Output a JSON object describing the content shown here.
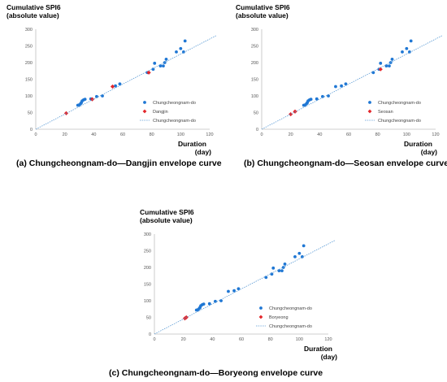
{
  "chart_data": [
    {
      "type": "scatter",
      "panel": "a",
      "caption": "(a) Chungcheongnam-do—Dangjin envelope curve",
      "ylabel_lines": [
        "Cumulative SPI6",
        "(absolute value)"
      ],
      "xlabel_lines": [
        "Duration",
        "(day)"
      ],
      "xlim": [
        0,
        120
      ],
      "ylim": [
        0,
        300
      ],
      "xticks": [
        0,
        20,
        40,
        60,
        80,
        100,
        120
      ],
      "yticks": [
        0,
        50,
        100,
        150,
        200,
        250,
        300
      ],
      "legend_position": "lower-right",
      "series": [
        {
          "name": "Chungcheongnam-do",
          "marker": "circle",
          "color": "#1f77d4",
          "x": [
            29,
            30,
            31,
            31.5,
            32,
            33,
            34,
            38,
            42,
            46,
            55,
            58,
            77,
            81,
            82,
            86,
            88,
            89,
            90,
            97,
            100,
            102,
            103
          ],
          "y": [
            72,
            73,
            77,
            80,
            85,
            88,
            90,
            91,
            98,
            100,
            130,
            136,
            170,
            180,
            198,
            190,
            190,
            200,
            210,
            232,
            242,
            232,
            265
          ]
        },
        {
          "name": "Dangjin",
          "marker": "diamond",
          "color": "#e3262b",
          "x": [
            21,
            39,
            53,
            78
          ],
          "y": [
            48,
            90,
            128,
            170
          ]
        },
        {
          "name": "Chungcheongnam-do",
          "type": "line",
          "style": "dotted",
          "color": "#5b9bd5",
          "x": [
            0,
            125
          ],
          "y": [
            0,
            282
          ]
        }
      ]
    },
    {
      "type": "scatter",
      "panel": "b",
      "caption": "(b) Chungcheongnam-do—Seosan envelope curve",
      "ylabel_lines": [
        "Cumulative SPI6",
        "(absolute value)"
      ],
      "xlabel_lines": [
        "Duration",
        "(day)"
      ],
      "xlim": [
        0,
        120
      ],
      "ylim": [
        0,
        300
      ],
      "xticks": [
        0,
        20,
        40,
        60,
        80,
        100,
        120
      ],
      "yticks": [
        0,
        50,
        100,
        150,
        200,
        250,
        300
      ],
      "legend_position": "lower-right",
      "series": [
        {
          "name": "Chungcheongnam-do",
          "marker": "circle",
          "color": "#1f77d4",
          "x": [
            29,
            30,
            31,
            31.5,
            32,
            33,
            34,
            38,
            42,
            46,
            51,
            55,
            58,
            77,
            81,
            82,
            86,
            88,
            89,
            90,
            97,
            100,
            102,
            103
          ],
          "y": [
            72,
            73,
            77,
            80,
            85,
            88,
            90,
            91,
            98,
            100,
            128,
            130,
            136,
            170,
            180,
            198,
            190,
            190,
            200,
            210,
            232,
            242,
            232,
            265
          ]
        },
        {
          "name": "Seosan",
          "marker": "diamond",
          "color": "#e3262b",
          "x": [
            20,
            23,
            82
          ],
          "y": [
            45,
            53,
            180
          ]
        },
        {
          "name": "Chungcheongnam-do",
          "type": "line",
          "style": "dotted",
          "color": "#5b9bd5",
          "x": [
            0,
            125
          ],
          "y": [
            0,
            282
          ]
        }
      ]
    },
    {
      "type": "scatter",
      "panel": "c",
      "caption": "(c) Chungcheongnam-do—Boryeong envelope curve",
      "ylabel_lines": [
        "Cumulative SPI6",
        "(absolute value)"
      ],
      "xlabel_lines": [
        "Duration",
        "(day)"
      ],
      "xlim": [
        0,
        120
      ],
      "ylim": [
        0,
        300
      ],
      "xticks": [
        0,
        20,
        40,
        60,
        80,
        100,
        120
      ],
      "yticks": [
        0,
        50,
        100,
        150,
        200,
        250,
        300
      ],
      "legend_position": "lower-right",
      "series": [
        {
          "name": "Chungcheongnam-do",
          "marker": "circle",
          "color": "#1f77d4",
          "x": [
            29,
            30,
            31,
            31.5,
            32,
            33,
            34,
            38,
            42,
            46,
            51,
            55,
            58,
            77,
            81,
            82,
            86,
            88,
            89,
            90,
            97,
            100,
            102,
            103
          ],
          "y": [
            72,
            73,
            77,
            80,
            85,
            88,
            90,
            91,
            98,
            100,
            128,
            130,
            136,
            170,
            180,
            198,
            190,
            190,
            200,
            210,
            232,
            242,
            232,
            265
          ]
        },
        {
          "name": "Boryeong",
          "marker": "diamond",
          "color": "#e3262b",
          "x": [
            21,
            22
          ],
          "y": [
            47,
            50
          ]
        },
        {
          "name": "Chungcheongnam-do",
          "type": "line",
          "style": "dotted",
          "color": "#5b9bd5",
          "x": [
            0,
            125
          ],
          "y": [
            0,
            282
          ]
        }
      ]
    }
  ]
}
